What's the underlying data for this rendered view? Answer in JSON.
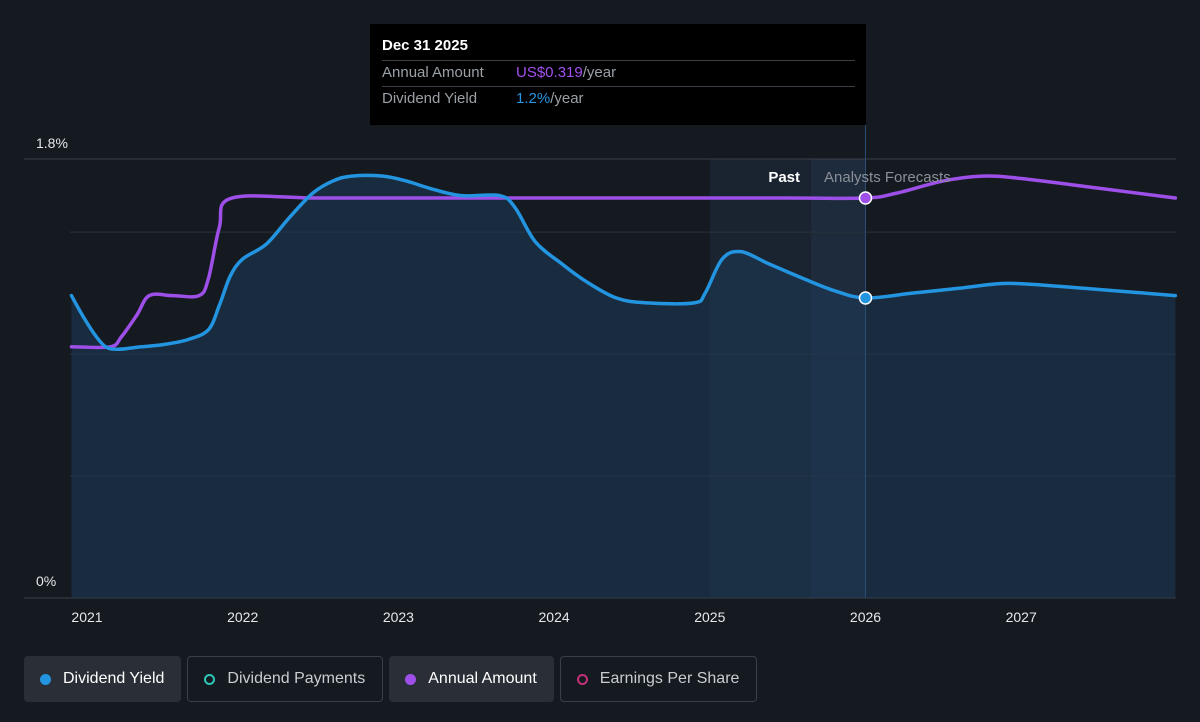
{
  "chart_data": {
    "type": "line",
    "x_ticks": [
      "2021",
      "2022",
      "2023",
      "2024",
      "2025",
      "2026",
      "2027"
    ],
    "y_ticks": [
      "0%",
      "1.8%"
    ],
    "ylim": [
      0,
      1.8
    ],
    "grid": true,
    "regions": {
      "past": "Past",
      "forecast": "Analysts Forecasts"
    },
    "series": [
      {
        "name": "Dividend Yield",
        "color": "#2394df",
        "filled": true,
        "points": [
          [
            2020.9,
            1.24
          ],
          [
            2020.97,
            1.16
          ],
          [
            2021.05,
            1.08
          ],
          [
            2021.12,
            1.03
          ],
          [
            2021.2,
            1.02
          ],
          [
            2021.35,
            1.03
          ],
          [
            2021.5,
            1.04
          ],
          [
            2021.65,
            1.06
          ],
          [
            2021.78,
            1.1
          ],
          [
            2021.85,
            1.2
          ],
          [
            2021.92,
            1.32
          ],
          [
            2022.0,
            1.39
          ],
          [
            2022.15,
            1.45
          ],
          [
            2022.3,
            1.56
          ],
          [
            2022.45,
            1.66
          ],
          [
            2022.58,
            1.71
          ],
          [
            2022.7,
            1.73
          ],
          [
            2022.9,
            1.73
          ],
          [
            2023.05,
            1.71
          ],
          [
            2023.2,
            1.68
          ],
          [
            2023.4,
            1.65
          ],
          [
            2023.65,
            1.65
          ],
          [
            2023.75,
            1.6
          ],
          [
            2023.88,
            1.46
          ],
          [
            2024.05,
            1.37
          ],
          [
            2024.2,
            1.3
          ],
          [
            2024.4,
            1.23
          ],
          [
            2024.6,
            1.21
          ],
          [
            2024.9,
            1.21
          ],
          [
            2024.97,
            1.25
          ],
          [
            2025.08,
            1.39
          ],
          [
            2025.2,
            1.42
          ],
          [
            2025.38,
            1.37
          ],
          [
            2025.6,
            1.31
          ],
          [
            2025.8,
            1.26
          ],
          [
            2026.0,
            1.23
          ],
          [
            2026.3,
            1.25
          ],
          [
            2026.6,
            1.27
          ],
          [
            2026.9,
            1.29
          ],
          [
            2027.2,
            1.28
          ],
          [
            2027.6,
            1.26
          ],
          [
            2027.99,
            1.24
          ]
        ]
      },
      {
        "name": "Annual Amount",
        "color": "#9d4fe8",
        "filled": false,
        "points": [
          [
            2020.9,
            1.03
          ],
          [
            2021.15,
            1.03
          ],
          [
            2021.22,
            1.07
          ],
          [
            2021.32,
            1.16
          ],
          [
            2021.4,
            1.24
          ],
          [
            2021.55,
            1.24
          ],
          [
            2021.72,
            1.24
          ],
          [
            2021.78,
            1.31
          ],
          [
            2021.85,
            1.52
          ],
          [
            2021.93,
            1.64
          ],
          [
            2022.5,
            1.64
          ],
          [
            2023.5,
            1.64
          ],
          [
            2024.5,
            1.64
          ],
          [
            2025.5,
            1.64
          ],
          [
            2026.0,
            1.64
          ],
          [
            2026.2,
            1.66
          ],
          [
            2026.5,
            1.71
          ],
          [
            2026.75,
            1.73
          ],
          [
            2027.0,
            1.72
          ],
          [
            2027.5,
            1.68
          ],
          [
            2027.99,
            1.64
          ]
        ]
      }
    ],
    "highlight": {
      "x": 2026.0,
      "yield": 1.23,
      "amount": 1.64
    }
  },
  "tooltip": {
    "date": "Dec 31 2025",
    "rows": [
      {
        "label": "Annual Amount",
        "value": "US$0.319",
        "unit": "/year",
        "color": "#a350f0"
      },
      {
        "label": "Dividend Yield",
        "value": "1.2%",
        "unit": "/year",
        "color": "#2394df"
      }
    ]
  },
  "legend": [
    {
      "label": "Dividend Yield",
      "active": true,
      "color": "#2394df",
      "filled": true
    },
    {
      "label": "Dividend Payments",
      "active": false,
      "color": "#2ec4b6",
      "filled": false
    },
    {
      "label": "Annual Amount",
      "active": true,
      "color": "#9d4fe8",
      "filled": true
    },
    {
      "label": "Earnings Per Share",
      "active": false,
      "color": "#c2307a",
      "filled": false
    }
  ]
}
